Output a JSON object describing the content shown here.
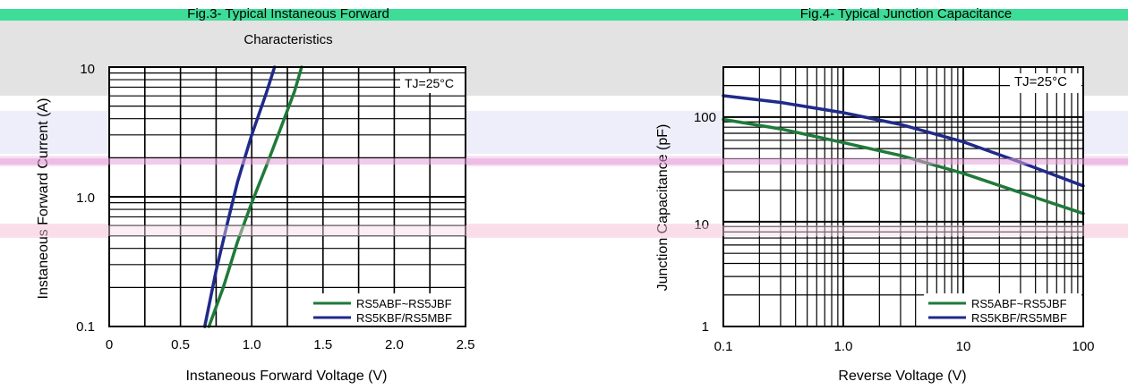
{
  "colors": {
    "green": "#1f7a3a",
    "navy": "#1f2a8a",
    "grid": "#000000",
    "header_band": "#3ddc97",
    "gray_band": "#e3e3e3",
    "lavender_band": "#eeeefa",
    "pink_band": "#f7d9e6",
    "magenta_band": "#e3a0d8"
  },
  "chart_data": [
    {
      "type": "line",
      "title": "Fig.3- Typical Instaneous Forward",
      "subtitle": "Characteristics",
      "xlabel": "Instaneous Forward Voltage (V)",
      "ylabel": "Instaneous Forward Current (A)",
      "xscale": "linear",
      "yscale": "log",
      "xlim": [
        0,
        2.5
      ],
      "ylim": [
        0.1,
        10
      ],
      "xticks": [
        "0",
        "0.5",
        "1.0",
        "1.5",
        "2.0",
        "2.5"
      ],
      "yticks": [
        "0.1",
        "1.0",
        "10"
      ],
      "annotation": "TJ=25°C",
      "legend": "bottom-right",
      "grid": true,
      "series": [
        {
          "name": "RS5ABF~RS5JBF",
          "color": "green",
          "points": [
            [
              0.7,
              0.1
            ],
            [
              0.8,
              0.2
            ],
            [
              0.9,
              0.45
            ],
            [
              1.0,
              0.9
            ],
            [
              1.1,
              1.7
            ],
            [
              1.2,
              3.3
            ],
            [
              1.3,
              6.5
            ],
            [
              1.35,
              10
            ]
          ]
        },
        {
          "name": "RS5KBF/RS5MBF",
          "color": "navy",
          "points": [
            [
              0.67,
              0.1
            ],
            [
              0.75,
              0.27
            ],
            [
              0.83,
              0.63
            ],
            [
              0.9,
              1.3
            ],
            [
              1.0,
              3.0
            ],
            [
              1.1,
              6.2
            ],
            [
              1.16,
              10
            ]
          ]
        }
      ]
    },
    {
      "type": "line",
      "title": "Fig.4- Typical Junction Capacitance",
      "xlabel": "Reverse Voltage (V)",
      "ylabel": "Junction Capacitance (pF)",
      "xscale": "log",
      "yscale": "log",
      "xlim": [
        0.1,
        100
      ],
      "ylim": [
        1,
        300
      ],
      "xticks": [
        "0.1",
        "1.0",
        "10",
        "100"
      ],
      "yticks": [
        "1",
        "10",
        "100"
      ],
      "annotation": "TJ=25°C",
      "legend": "bottom-right",
      "grid": true,
      "series": [
        {
          "name": "RS5ABF~RS5JBF",
          "color": "green",
          "points": [
            [
              0.1,
              95
            ],
            [
              0.3,
              77
            ],
            [
              1,
              57
            ],
            [
              3,
              43
            ],
            [
              10,
              29
            ],
            [
              30,
              19
            ],
            [
              100,
              12
            ]
          ]
        },
        {
          "name": "RS5KBF/RS5MBF",
          "color": "navy",
          "points": [
            [
              0.1,
              160
            ],
            [
              0.3,
              138
            ],
            [
              1,
              110
            ],
            [
              3,
              85
            ],
            [
              10,
              58
            ],
            [
              30,
              37
            ],
            [
              100,
              22
            ]
          ]
        }
      ]
    }
  ]
}
